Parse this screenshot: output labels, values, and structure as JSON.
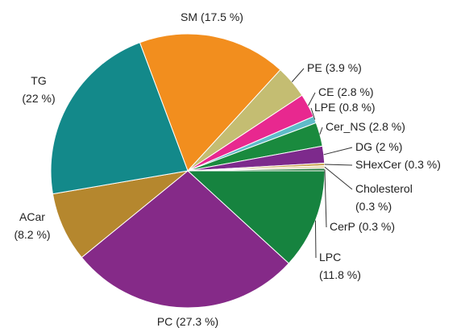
{
  "chart_data": {
    "type": "pie",
    "categories": [
      "SM",
      "PE",
      "CE",
      "LPE",
      "Cer_NS",
      "DG",
      "SHexCer",
      "Cholesterol",
      "CerP",
      "LPC",
      "PC",
      "ACar",
      "TG"
    ],
    "values": [
      17.5,
      3.9,
      2.8,
      0.8,
      2.8,
      2,
      0.3,
      0.3,
      0.3,
      11.8,
      27.3,
      8.2,
      22
    ],
    "value_labels": [
      "(17.5 %)",
      "(3.9 %)",
      "(2.8 %)",
      "(0.8 %)",
      "(2.8 %)",
      "(2 %)",
      "(0.3 %)",
      "(0.3 %)",
      "(0.3 %)",
      "(11.8 %)",
      "(27.3 %)",
      "(8.2 %)",
      "(22 %)"
    ],
    "colors": [
      "#f28e1e",
      "#c4bd72",
      "#e8288f",
      "#5fbcc9",
      "#1a8a3e",
      "#7d2a8c",
      "#c8a24a",
      "#e8d9b0",
      "#2a7b40",
      "#16833f",
      "#852a88",
      "#b5872e",
      "#13898a"
    ]
  }
}
